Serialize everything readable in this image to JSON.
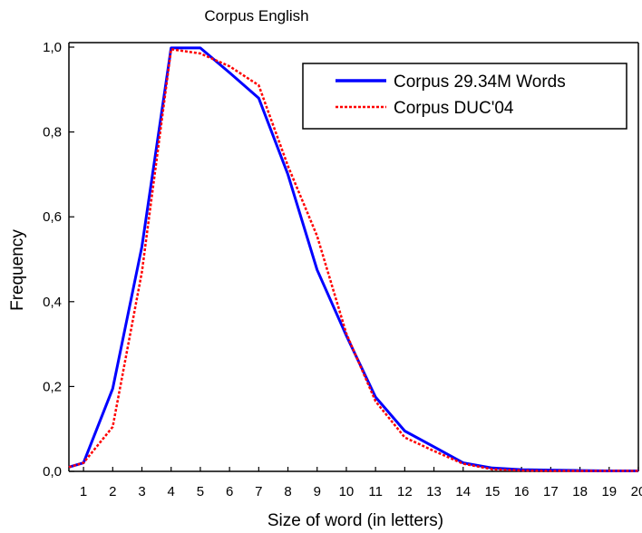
{
  "chart_data": {
    "type": "line",
    "title": "Corpus English",
    "xlabel": "Size of word (in letters)",
    "ylabel": "Frequency",
    "xlim": [
      0.5,
      20
    ],
    "ylim": [
      0,
      1.0
    ],
    "grid": false,
    "legend_position": "top-right",
    "x_ticks": [
      1,
      2,
      3,
      4,
      5,
      6,
      7,
      8,
      9,
      10,
      11,
      12,
      13,
      14,
      15,
      16,
      17,
      18,
      19,
      20
    ],
    "x_tick_labels": [
      "1",
      "2",
      "3",
      "4",
      "5",
      "6",
      "7",
      "8",
      "9",
      "10",
      "11",
      "12",
      "13",
      "14",
      "15",
      "16",
      "17",
      "18",
      "19",
      "20"
    ],
    "y_ticks": [
      0,
      0.2,
      0.4,
      0.6,
      0.8,
      1.0
    ],
    "y_tick_labels": [
      "0,0",
      "0,2",
      "0,4",
      "0,6",
      "0,8",
      "1,0"
    ],
    "series": [
      {
        "name": "Corpus 29.34M Words",
        "color": "#0000ff",
        "style": "solid",
        "x": [
          0.5,
          1,
          2,
          3,
          4,
          5,
          6,
          7,
          8,
          9,
          10,
          11,
          12,
          13,
          14,
          15,
          16,
          17,
          18,
          19,
          20
        ],
        "y": [
          0.01,
          0.02,
          0.195,
          0.53,
          0.998,
          0.998,
          0.94,
          0.88,
          0.7,
          0.475,
          0.32,
          0.175,
          0.095,
          0.058,
          0.02,
          0.008,
          0.004,
          0.003,
          0.002,
          0.001,
          0.001
        ]
      },
      {
        "name": "Corpus DUC'04",
        "color": "#ff0000",
        "style": "dotted",
        "x": [
          0.5,
          1,
          2,
          3,
          4,
          5,
          6,
          7,
          8,
          9,
          10,
          11,
          12,
          13,
          14,
          15,
          16,
          17,
          18,
          19,
          20
        ],
        "y": [
          0.01,
          0.02,
          0.105,
          0.47,
          0.995,
          0.985,
          0.955,
          0.91,
          0.72,
          0.555,
          0.325,
          0.165,
          0.08,
          0.048,
          0.018,
          0.005,
          0.002,
          0.001,
          0.001,
          0.001,
          0.001
        ]
      }
    ]
  }
}
